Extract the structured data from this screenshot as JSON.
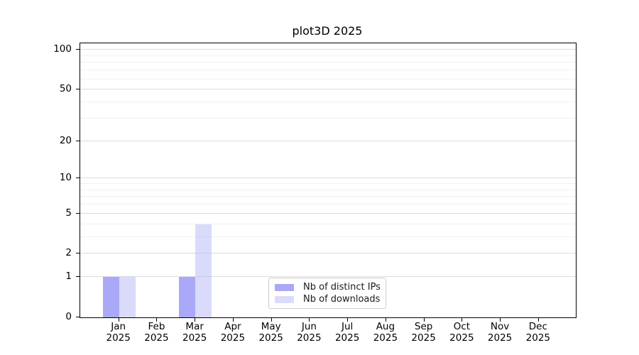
{
  "chart_data": {
    "type": "bar",
    "title": "plot3D 2025",
    "categories": [
      "Jan",
      "Feb",
      "Mar",
      "Apr",
      "May",
      "Jun",
      "Jul",
      "Aug",
      "Sep",
      "Oct",
      "Nov",
      "Dec"
    ],
    "category_year_sublabel": "2025",
    "series": [
      {
        "name": "Nb of distinct IPs",
        "color": "#a9a9f7",
        "fill": "#a9a9f7",
        "values": [
          1,
          0,
          1,
          0,
          0,
          0,
          0,
          0,
          0,
          0,
          0,
          0
        ]
      },
      {
        "name": "Nb of downloads",
        "color": "#dcdcfa",
        "fill": "rgba(185,185,248,0.52)",
        "values": [
          1,
          0,
          4,
          0,
          0,
          0,
          0,
          0,
          0,
          0,
          0,
          0
        ]
      }
    ],
    "y_axis": {
      "scale": "log1p",
      "ticks": [
        0,
        1,
        2,
        5,
        10,
        20,
        50,
        100
      ],
      "minor_gridlines": [
        3,
        4,
        6,
        7,
        8,
        9,
        30,
        40,
        60,
        70,
        80,
        90
      ],
      "axis_top_value": 112.3,
      "ylim": [
        0,
        112.3
      ]
    },
    "grid": "on",
    "legend_position": "lower center",
    "colors": {
      "axis": "#000000",
      "major_grid": "#dcdcdc",
      "minor_grid": "#f0f0f0",
      "legend_border": "#cccccc"
    }
  }
}
